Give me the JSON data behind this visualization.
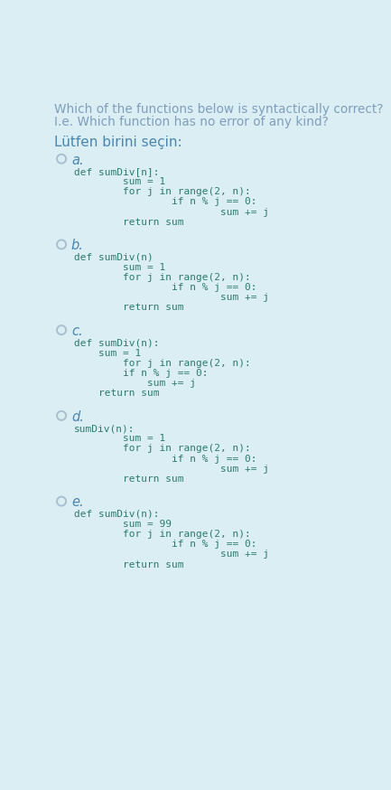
{
  "bg_color": "#daeef3",
  "title_lines": [
    "Which of the functions below is syntactically correct?",
    "I.e. Which function has no error of any kind?"
  ],
  "subtitle": "Lütfen birini seçin:",
  "title_color": "#7f9fbf",
  "subtitle_color": "#4a86b0",
  "code_color": "#2d7a6e",
  "label_color": "#4a86b0",
  "circle_color": "#aabfcf",
  "options": [
    {
      "label": "a.",
      "lines": [
        [
          "def sumDiv[n]:",
          0
        ],
        [
          "        sum = 1",
          1
        ],
        [
          "        for j in range(2, n):",
          1
        ],
        [
          "                if n % j == 0:",
          2
        ],
        [
          "                        sum += j",
          3
        ],
        [
          "        return sum",
          1
        ]
      ]
    },
    {
      "label": "b.",
      "lines": [
        [
          "def sumDiv(n)",
          0
        ],
        [
          "        sum = 1",
          1
        ],
        [
          "        for j in range(2, n):",
          1
        ],
        [
          "                if n % j == 0:",
          2
        ],
        [
          "                        sum += j",
          3
        ],
        [
          "        return sum",
          1
        ]
      ]
    },
    {
      "label": "c.",
      "lines": [
        [
          "def sumDiv(n):",
          0
        ],
        [
          "    sum = 1",
          0
        ],
        [
          "        for j in range(2, n):",
          1
        ],
        [
          "        if n % j == 0:",
          1
        ],
        [
          "            sum += j",
          1
        ],
        [
          "    return sum",
          0
        ]
      ]
    },
    {
      "label": "d.",
      "lines": [
        [
          "sumDiv(n):",
          0
        ],
        [
          "        sum = 1",
          1
        ],
        [
          "        for j in range(2, n):",
          1
        ],
        [
          "                if n % j == 0:",
          2
        ],
        [
          "                        sum += j",
          3
        ],
        [
          "        return sum",
          1
        ]
      ]
    },
    {
      "label": "e.",
      "lines": [
        [
          "def sumDiv(n):",
          0
        ],
        [
          "        sum = 99",
          1
        ],
        [
          "        for j in range(2, n):",
          1
        ],
        [
          "                if n % j == 0:",
          2
        ],
        [
          "                        sum += j",
          3
        ],
        [
          "        return sum",
          1
        ]
      ]
    }
  ]
}
